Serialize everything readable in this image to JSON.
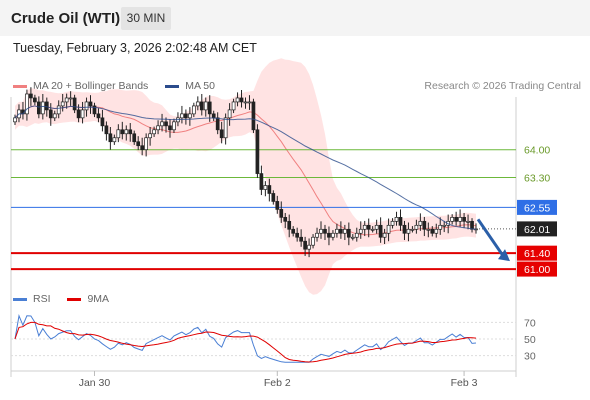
{
  "header": {
    "title": "Crude Oil (WTI)",
    "timeframe": "30 MIN"
  },
  "datetime": "Tuesday, February 3, 2026 2:02:48 AM CET",
  "legend": {
    "bollinger": {
      "label": "MA 20 + Bollinger Bands",
      "color": "#f08080"
    },
    "ma50": {
      "label": "MA 50",
      "color": "#2b4c8c"
    }
  },
  "credit": "Research © 2026 Trading Central",
  "rsi_legend": {
    "rsi": {
      "label": "RSI",
      "color": "#4a7fd4"
    },
    "ma9": {
      "label": "9MA",
      "color": "#e00000"
    }
  },
  "chart_data": [
    {
      "type": "candlestick",
      "ylim": [
        60.6,
        65.5
      ],
      "x_labels": [
        {
          "label": "Jan 30",
          "index": 20
        },
        {
          "label": "Feb 2",
          "index": 66
        },
        {
          "label": "Feb 3",
          "index": 113
        }
      ],
      "levels": [
        {
          "value": 64.0,
          "label": "64.00",
          "kind": "resistance",
          "color": "#6cb83a"
        },
        {
          "value": 63.3,
          "label": "63.30",
          "kind": "resistance",
          "color": "#6cb83a"
        },
        {
          "value": 62.55,
          "label": "62.55",
          "kind": "pivot",
          "color": "#2f6fe6"
        },
        {
          "value": 61.4,
          "label": "61.40",
          "kind": "support",
          "color": "#e00000"
        },
        {
          "value": 61.0,
          "label": "61.00",
          "kind": "support",
          "color": "#e00000"
        }
      ],
      "last_price": {
        "value": 62.01,
        "label": "62.01"
      },
      "closes": [
        64.8,
        65.0,
        64.9,
        65.4,
        65.3,
        65.2,
        64.9,
        65.2,
        65.0,
        64.8,
        64.9,
        65.1,
        65.2,
        65.3,
        65.3,
        65.0,
        64.8,
        65.0,
        65.2,
        65.1,
        64.9,
        64.8,
        64.6,
        64.4,
        64.2,
        64.3,
        64.5,
        64.4,
        64.5,
        64.4,
        64.2,
        64.1,
        64.0,
        64.3,
        64.4,
        64.5,
        64.6,
        64.7,
        64.6,
        64.5,
        64.7,
        64.8,
        64.9,
        64.8,
        64.9,
        65.1,
        65.2,
        65.0,
        65.2,
        64.9,
        64.8,
        64.5,
        64.3,
        64.8,
        65.0,
        65.2,
        65.3,
        65.2,
        65.2,
        65.2,
        64.5,
        63.4,
        63.0,
        63.1,
        62.9,
        62.7,
        62.5,
        62.3,
        62.2,
        62.0,
        61.9,
        61.8,
        61.7,
        61.5,
        61.6,
        61.8,
        61.9,
        62.0,
        61.9,
        61.8,
        61.9,
        62.0,
        61.9,
        62.0,
        61.8,
        61.8,
        61.9,
        62.0,
        62.1,
        62.0,
        62.0,
        62.1,
        61.8,
        61.9,
        62.1,
        62.2,
        62.3,
        62.1,
        61.9,
        62.0,
        62.0,
        62.1,
        62.2,
        62.0,
        62.0,
        61.9,
        62.0,
        62.1,
        62.1,
        62.2,
        62.3,
        62.2,
        62.3,
        62.2,
        62.2,
        62.0,
        62.01
      ]
    },
    {
      "type": "line",
      "ylim": [
        15,
        85
      ],
      "ticks": [
        70,
        50,
        30
      ],
      "guide_lines": [
        70,
        50,
        30
      ],
      "series_color_keys": [
        "rsi",
        "ma9"
      ]
    }
  ]
}
